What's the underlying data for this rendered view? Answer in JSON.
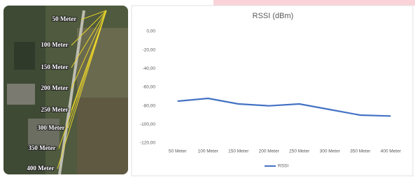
{
  "map_labels": [
    "50 Meter",
    "100 Meter",
    "150 Meter",
    "200 Meter",
    "250 Meter",
    "300 Meter",
    "350 Meter",
    "400 Meter"
  ],
  "chart_data": {
    "type": "line",
    "title": "RSSI (dBm)",
    "categories": [
      "50 Meter",
      "100 Meter",
      "150 Meter",
      "200 Meter",
      "250 Meter",
      "300 Meter",
      "350 Meter",
      "400 Meter"
    ],
    "series": [
      {
        "name": "RSSI",
        "color": "#4472c4",
        "values": [
          -75,
          -72,
          -78,
          -80,
          -78,
          -84,
          -90,
          -91
        ]
      }
    ],
    "ylim": [
      -120,
      0
    ],
    "yticks": [
      {
        "value": 0,
        "label": "0,00"
      },
      {
        "value": -20,
        "label": "-20,00"
      },
      {
        "value": -40,
        "label": "-40,00"
      },
      {
        "value": -60,
        "label": "-60,00"
      },
      {
        "value": -80,
        "label": "-80,00"
      },
      {
        "value": -100,
        "label": "-100,00"
      },
      {
        "value": -120,
        "label": "-120,00"
      }
    ],
    "grid": false,
    "legend": "bottom"
  }
}
